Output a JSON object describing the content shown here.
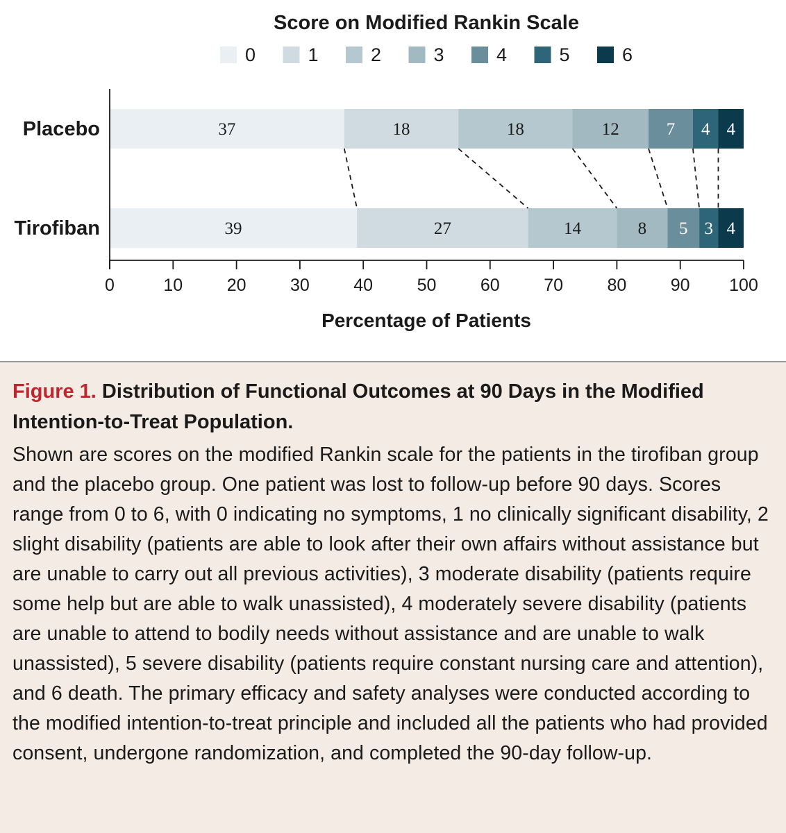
{
  "chart_data": {
    "type": "bar",
    "orientation": "horizontal",
    "stacked": true,
    "legend_title": "Score on Modified Rankin Scale",
    "legend_placement": "top",
    "categories": [
      "Placebo",
      "Tirofiban"
    ],
    "series": [
      {
        "name": "0",
        "color": "#e9eff2",
        "values": [
          37,
          39
        ],
        "label_color": "#1a1a1a"
      },
      {
        "name": "1",
        "color": "#cfdbe0",
        "values": [
          18,
          27
        ],
        "label_color": "#1a1a1a"
      },
      {
        "name": "2",
        "color": "#b5c8cf",
        "values": [
          18,
          14
        ],
        "label_color": "#1a1a1a"
      },
      {
        "name": "3",
        "color": "#a2b9c1",
        "values": [
          12,
          8
        ],
        "label_color": "#1a1a1a"
      },
      {
        "name": "4",
        "color": "#6a8e9b",
        "values": [
          7,
          5
        ],
        "label_color": "#ffffff"
      },
      {
        "name": "5",
        "color": "#2f6578",
        "values": [
          4,
          3
        ],
        "label_color": "#ffffff"
      },
      {
        "name": "6",
        "color": "#0a3a4c",
        "values": [
          4,
          4
        ],
        "label_color": "#ffffff"
      }
    ],
    "xlabel": "Percentage of Patients",
    "xlim": [
      0,
      100
    ],
    "xticks": [
      0,
      10,
      20,
      30,
      40,
      50,
      60,
      70,
      80,
      90,
      100
    ],
    "connector_lines": "dashed"
  },
  "caption": {
    "figure_label": "Figure 1.",
    "title": "Distribution of Functional Outcomes at 90 Days in the Modified Intention-to-Treat Population.",
    "body": "Shown are scores on the modified Rankin scale for the patients in the tirofiban group and the placebo group. One patient was lost to follow-up before 90 days. Scores range from 0 to 6, with 0 indicating no symptoms, 1 no clinically significant disability, 2 slight disability (patients are able to look after their own affairs without assistance but are unable to carry out all previous activities), 3 moderate disability (patients require some help but are able to walk unassisted), 4 moderately severe disability (patients are unable to attend to bodily needs without assistance and are unable to walk unassisted), 5 severe disability (patients require constant nursing care and attention), and 6 death. The primary efficacy and safety analyses were conducted according to the modified intention-to-treat principle and included all the patients who had provided consent, undergone randomization, and completed the 90-day follow-up."
  }
}
